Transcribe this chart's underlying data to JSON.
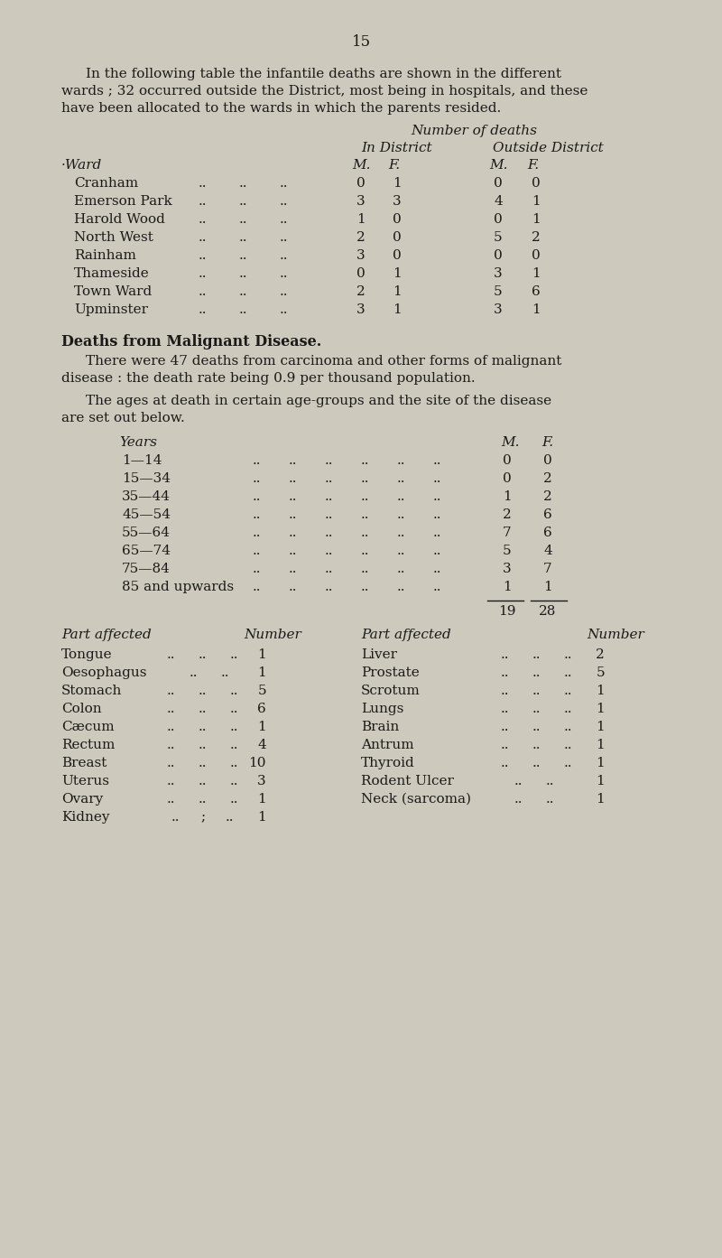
{
  "page_number": "15",
  "bg_color": "#cdc9bc",
  "text_color": "#1a1a1a",
  "para1_lines": [
    "In the following table the infantile deaths are shown in the different",
    "wards ; 32 occurred outside the District, most being in hospitals, and these",
    "have been allocated to the wards in which the parents resided."
  ],
  "table1_rows": [
    [
      "Cranham",
      "0",
      "1",
      "0",
      "0"
    ],
    [
      "Emerson Park",
      "3",
      "3",
      "4",
      "1"
    ],
    [
      "Harold Wood",
      "1",
      "0",
      "0",
      "1"
    ],
    [
      "North West",
      "2",
      "0",
      "5",
      "2"
    ],
    [
      "Rainham",
      "3",
      "0",
      "0",
      "0"
    ],
    [
      "Thameside",
      "0",
      "1",
      "3",
      "1"
    ],
    [
      "Town Ward",
      "2",
      "1",
      "5",
      "6"
    ],
    [
      "Upminster",
      "3",
      "1",
      "3",
      "1"
    ]
  ],
  "section_heading": "Deaths from Malignant Disease.",
  "para2_lines": [
    "There were 47 deaths from carcinoma and other forms of malignant",
    "disease : the death rate being 0.9 per thousand population."
  ],
  "para3_lines": [
    "The ages at death in certain age-groups and the site of the disease",
    "are set out below."
  ],
  "age_rows": [
    [
      "1—14",
      "0",
      "0"
    ],
    [
      "15—34",
      "0",
      "2"
    ],
    [
      "35—44",
      "1",
      "2"
    ],
    [
      "45—54",
      "2",
      "6"
    ],
    [
      "55—64",
      "7",
      "6"
    ],
    [
      "65—74",
      "5",
      "4"
    ],
    [
      "75—84",
      "3",
      "7"
    ],
    [
      "85 and upwards",
      "1",
      "1"
    ]
  ],
  "age_totals": [
    "19",
    "28"
  ],
  "part_left": [
    [
      "Tongue",
      "1"
    ],
    [
      "Oesophagus",
      "1"
    ],
    [
      "Stomach",
      "5"
    ],
    [
      "Colon",
      "6"
    ],
    [
      "Cæcum",
      "1"
    ],
    [
      "Rectum",
      "4"
    ],
    [
      "Breast",
      "10"
    ],
    [
      "Uterus",
      "3"
    ],
    [
      "Ovary",
      "1"
    ],
    [
      "Kidney",
      "1"
    ]
  ],
  "part_right": [
    [
      "Liver",
      "2"
    ],
    [
      "Prostate",
      "5"
    ],
    [
      "Scrotum",
      "1"
    ],
    [
      "Lungs",
      "1"
    ],
    [
      "Brain",
      "1"
    ],
    [
      "Antrum",
      "1"
    ],
    [
      "Thyroid",
      "1"
    ],
    [
      "Rodent Ulcer",
      "1"
    ],
    [
      "Neck (sarcoma)",
      "1"
    ],
    [
      "",
      ""
    ]
  ],
  "kidney_dots": [
    "..",
    ";",
    ".."
  ],
  "part_left_dots": [
    "..",
    "..",
    ".."
  ]
}
